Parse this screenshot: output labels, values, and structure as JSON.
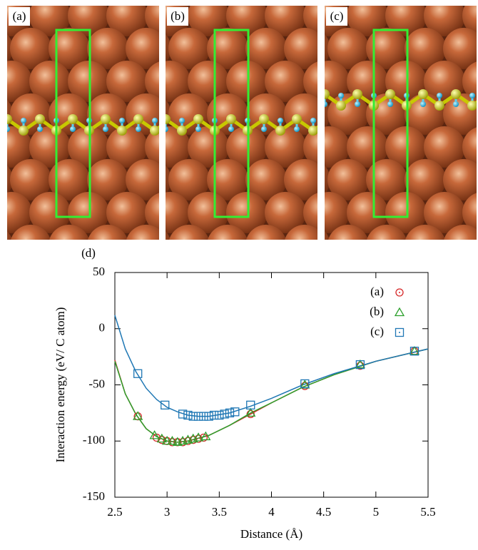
{
  "panels": [
    {
      "label": "(a)"
    },
    {
      "label": "(b)"
    },
    {
      "label": "(c)"
    }
  ],
  "chart_data": {
    "type": "scatter",
    "panel_label": "(d)",
    "x_label": "Distance (Å)",
    "y_label": "Interaction energy (eV/ C atom)",
    "xlim": [
      2.5,
      5.5
    ],
    "xticks": [
      2.5,
      3,
      3.5,
      4,
      4.5,
      5,
      5.5
    ],
    "ylim": [
      -150,
      50
    ],
    "yticks": [
      -150,
      -100,
      -50,
      0,
      50
    ],
    "legend": "top-right",
    "series": [
      {
        "name": "(a)",
        "color": "#d62728",
        "marker": "circle",
        "x": [
          2.72,
          2.9,
          2.95,
          3.0,
          3.05,
          3.1,
          3.15,
          3.2,
          3.25,
          3.3,
          3.35,
          3.8,
          4.32,
          4.85,
          5.37
        ],
        "values": [
          -78,
          -97,
          -99,
          -100,
          -101,
          -101,
          -101,
          -100,
          -99,
          -98,
          -97,
          -76,
          -51,
          -33,
          -20
        ]
      },
      {
        "name": "(b)",
        "color": "#2ca02c",
        "marker": "triangle",
        "x": [
          2.72,
          2.88,
          2.95,
          3.0,
          3.05,
          3.1,
          3.15,
          3.2,
          3.25,
          3.3,
          3.37,
          3.8,
          4.32,
          4.85,
          5.37
        ],
        "values": [
          -78,
          -95,
          -98,
          -100,
          -100,
          -101,
          -100,
          -99,
          -98,
          -97,
          -96,
          -75,
          -50,
          -32,
          -20
        ]
      },
      {
        "name": "(c)",
        "color": "#1f77b4",
        "marker": "square",
        "x": [
          2.72,
          2.98,
          3.15,
          3.2,
          3.25,
          3.3,
          3.35,
          3.4,
          3.45,
          3.5,
          3.55,
          3.6,
          3.65,
          3.8,
          4.32,
          4.85,
          5.37
        ],
        "values": [
          -40,
          -68,
          -76,
          -77,
          -78,
          -78,
          -78,
          -78,
          -77,
          -77,
          -76,
          -75,
          -74,
          -68,
          -49,
          -32,
          -20
        ]
      }
    ],
    "fits": [
      {
        "color": "#d62728",
        "x": [
          2.5,
          2.6,
          2.7,
          2.8,
          2.9,
          3.0,
          3.1,
          3.2,
          3.4,
          3.6,
          3.8,
          4.0,
          4.3,
          4.6,
          5.0,
          5.5
        ],
        "values": [
          -28,
          -58,
          -76,
          -89,
          -96,
          -100,
          -101,
          -100,
          -95,
          -86,
          -76,
          -66,
          -52,
          -41,
          -29,
          -18
        ]
      },
      {
        "color": "#2ca02c",
        "x": [
          2.5,
          2.6,
          2.7,
          2.8,
          2.9,
          3.0,
          3.1,
          3.2,
          3.4,
          3.6,
          3.8,
          4.0,
          4.3,
          4.6,
          5.0,
          5.5
        ],
        "values": [
          -29,
          -58,
          -76,
          -89,
          -96,
          -100,
          -101,
          -100,
          -95,
          -86,
          -75,
          -66,
          -52,
          -41,
          -29,
          -18
        ]
      },
      {
        "color": "#1f77b4",
        "x": [
          2.5,
          2.6,
          2.7,
          2.8,
          2.9,
          3.0,
          3.1,
          3.2,
          3.3,
          3.4,
          3.6,
          3.8,
          4.0,
          4.3,
          4.6,
          5.0,
          5.5
        ],
        "values": [
          12,
          -18,
          -38,
          -53,
          -63,
          -70,
          -74,
          -77,
          -78,
          -78,
          -75,
          -69,
          -62,
          -50,
          -40,
          -29,
          -18
        ]
      }
    ]
  }
}
